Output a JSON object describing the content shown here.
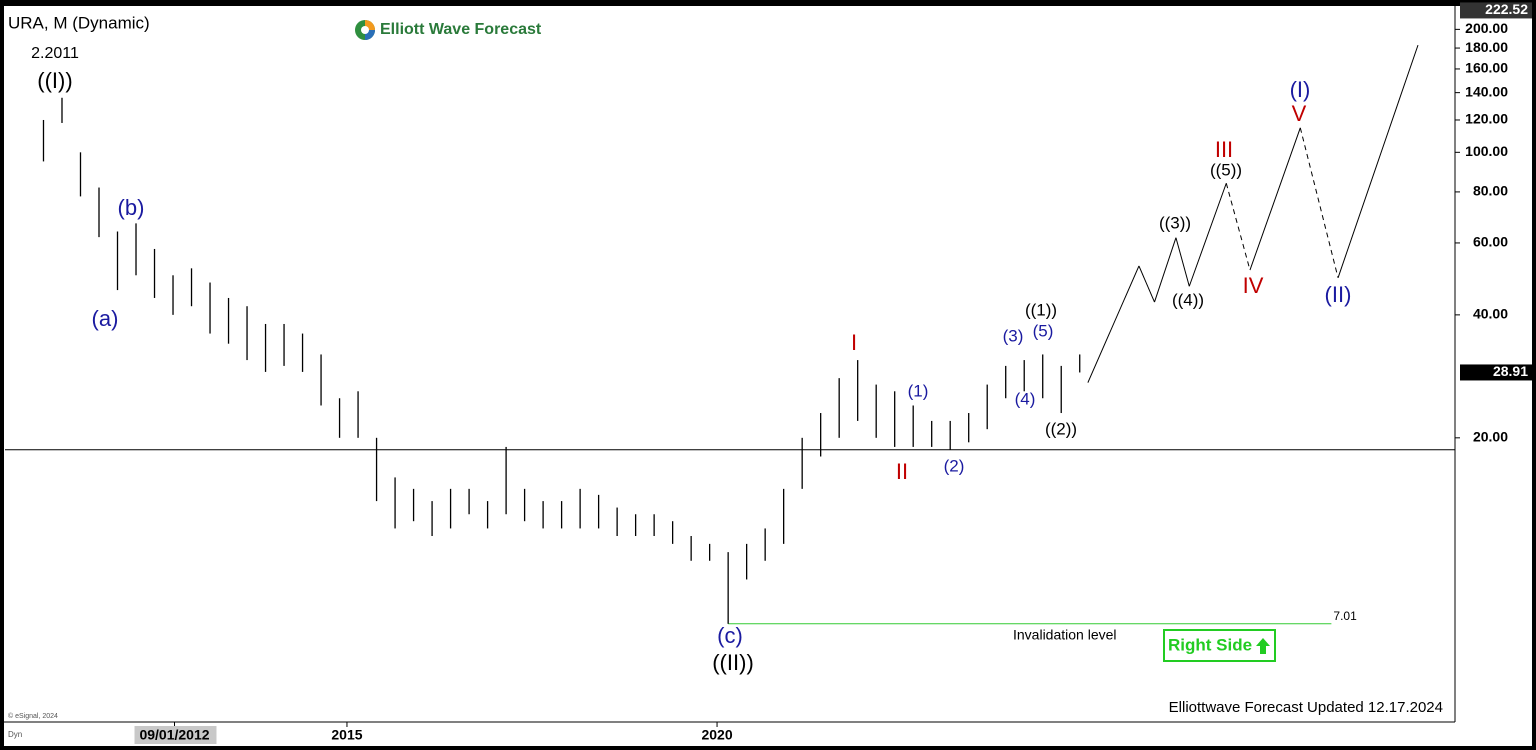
{
  "chart_data": {
    "type": "ohlc-bars",
    "title": "URA, M (Dynamic)",
    "brand": "Elliott Wave Forecast",
    "footer": "Elliottwave Forecast Updated 12.17.2024",
    "button": "Right Side",
    "copyright": "© eSignal, 2024",
    "mode": "Dyn",
    "log_scale": true,
    "color": "#000000",
    "x": [
      2010.9,
      2011.15,
      2011.4,
      2011.65,
      2011.9,
      2012.15,
      2012.4,
      2012.65,
      2012.9,
      2013.15,
      2013.4,
      2013.65,
      2013.9,
      2014.15,
      2014.4,
      2014.65,
      2014.9,
      2015.15,
      2015.4,
      2015.65,
      2015.9,
      2016.15,
      2016.4,
      2016.65,
      2016.9,
      2017.15,
      2017.4,
      2017.65,
      2017.9,
      2018.15,
      2018.4,
      2018.65,
      2018.9,
      2019.15,
      2019.4,
      2019.65,
      2019.9,
      2020.15,
      2020.4,
      2020.65,
      2020.9,
      2021.15,
      2021.4,
      2021.65,
      2021.9,
      2022.15,
      2022.4,
      2022.65,
      2022.9,
      2023.15,
      2023.4,
      2023.65,
      2023.9,
      2024.15,
      2024.4,
      2024.65,
      2024.9
    ],
    "high": [
      120,
      136,
      100,
      82,
      64,
      67,
      58,
      50,
      52,
      48,
      44,
      42,
      38,
      38,
      36,
      32,
      25,
      26,
      20,
      16,
      15,
      14,
      15,
      15,
      14,
      19,
      15,
      14,
      14,
      15,
      14.5,
      13.5,
      13,
      13,
      12.5,
      11.5,
      11,
      10.5,
      11,
      12,
      15,
      20,
      23,
      28,
      31,
      27,
      26,
      24,
      22,
      22,
      23,
      27,
      30,
      31,
      32,
      30,
      32
    ],
    "low": [
      95,
      118,
      78,
      62,
      46,
      50,
      44,
      40,
      42,
      36,
      34,
      31,
      29,
      30,
      29,
      24,
      20,
      20,
      14,
      12,
      12.5,
      11.5,
      12,
      13,
      12,
      13,
      12.5,
      12,
      12,
      12,
      12,
      11.5,
      11.5,
      11.5,
      11,
      10,
      10,
      7.01,
      9,
      10,
      11,
      15,
      18,
      20,
      22,
      20,
      19,
      19,
      19,
      18.7,
      19.5,
      21,
      25,
      26,
      25,
      23,
      28.91
    ],
    "xlim": [
      2010.38,
      2029.97
    ],
    "xticks": [
      {
        "value": 2012.67,
        "label": "09/01/2012"
      },
      2015,
      2020
    ],
    "ylim": [
      4.03,
      225.6
    ],
    "yticks": [
      {
        "value": 20,
        "label": "20.00"
      },
      {
        "value": 40,
        "label": "40.00"
      },
      {
        "value": 60,
        "label": "60.00"
      },
      {
        "value": 80,
        "label": "80.00"
      },
      {
        "value": 100,
        "label": "100.00"
      },
      {
        "value": 120,
        "label": "120.00"
      },
      {
        "value": 140,
        "label": "140.00"
      },
      {
        "value": 160,
        "label": "160.00"
      },
      {
        "value": 180,
        "label": "180.00"
      },
      {
        "value": 200,
        "label": "200.00"
      }
    ],
    "axis_badges": [
      222.52,
      28.91
    ],
    "support_line": 18.7,
    "invalidation": {
      "value": 7.01,
      "label": "Invalidation level",
      "start": 2020.15,
      "end": 2028.3,
      "color": "#33cc33"
    },
    "projection": {
      "x": [
        2025.01,
        2025.7,
        2025.91,
        2026.2,
        2026.38,
        2026.88,
        2027.2,
        2027.88,
        2028.39,
        2029.47
      ],
      "values": [
        27.3,
        52.7,
        43,
        61.8,
        47,
        84,
        51.5,
        114.8,
        49.3,
        183
      ],
      "dashed": [
        false,
        false,
        false,
        false,
        false,
        true,
        false,
        true,
        false
      ]
    },
    "wave_labels": [
      {
        "text": "2.2011",
        "color": "#000000"
      },
      {
        "text": "((I))",
        "color": "#000000"
      },
      {
        "text": "(b)",
        "color": "#1a1aa0"
      },
      {
        "text": "(a)",
        "color": "#1a1aa0"
      },
      {
        "text": "(c)",
        "color": "#1a1aa0"
      },
      {
        "text": "((II))",
        "color": "#000000"
      },
      {
        "text": "I",
        "color": "#c00000"
      },
      {
        "text": "II",
        "color": "#c00000"
      },
      {
        "text": "(1)",
        "color": "#1a1aa0"
      },
      {
        "text": "(2)",
        "color": "#1a1aa0"
      },
      {
        "text": "(3)",
        "color": "#1a1aa0"
      },
      {
        "text": "(5)",
        "color": "#1a1aa0"
      },
      {
        "text": "(4)",
        "color": "#1a1aa0"
      },
      {
        "text": "((1))",
        "color": "#000000"
      },
      {
        "text": "((2))",
        "color": "#000000"
      },
      {
        "text": "((3))",
        "color": "#000000"
      },
      {
        "text": "((4))",
        "color": "#000000"
      },
      {
        "text": "((5))",
        "color": "#000000"
      },
      {
        "text": "III",
        "color": "#c00000"
      },
      {
        "text": "IV",
        "color": "#c00000"
      },
      {
        "text": "(I)",
        "color": "#1a1aa0"
      },
      {
        "text": "V",
        "color": "#c00000"
      },
      {
        "text": "(II)",
        "color": "#1a1aa0"
      }
    ]
  }
}
